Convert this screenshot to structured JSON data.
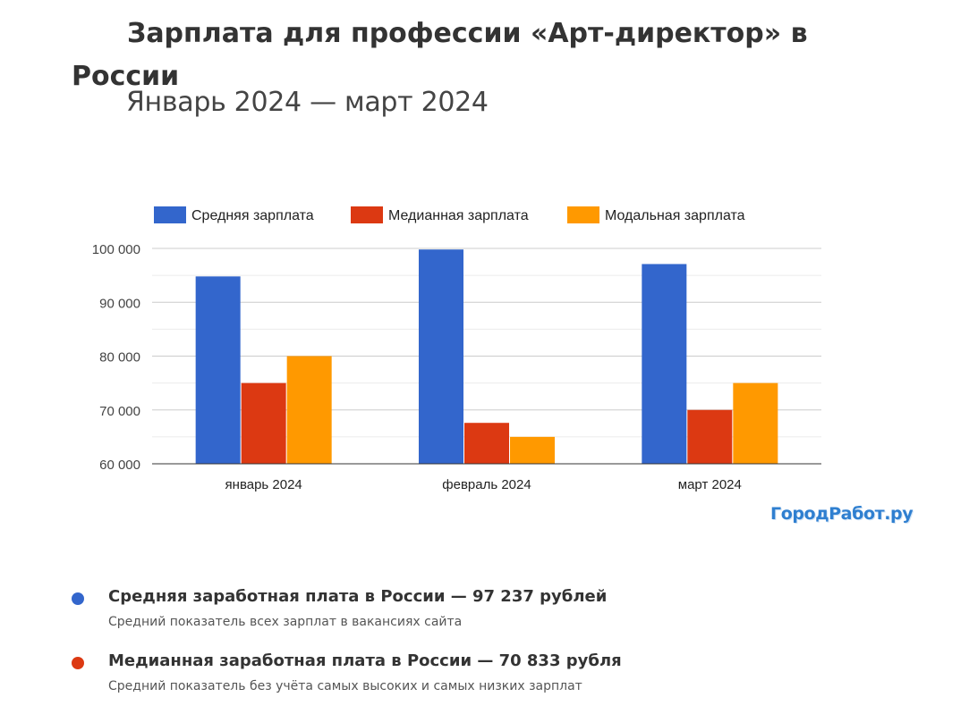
{
  "title": "Зарплата для профессии «Арт-директор» в России",
  "subtitle": "Январь 2024 — март 2024",
  "brand": "ГородРабот.ру",
  "chart_data": {
    "type": "bar",
    "categories": [
      "январь 2024",
      "февраль 2024",
      "март 2024"
    ],
    "series": [
      {
        "name": "Средняя зарплата",
        "color": "#3366cc",
        "values": [
          94800,
          99800,
          97100
        ]
      },
      {
        "name": "Медианная зарплата",
        "color": "#dc3912",
        "values": [
          75000,
          67600,
          70000
        ]
      },
      {
        "name": "Модальная зарплата",
        "color": "#ff9900",
        "values": [
          80000,
          65000,
          75000
        ]
      }
    ],
    "ylim": [
      60000,
      100000
    ],
    "yticks": [
      60000,
      70000,
      80000,
      90000,
      100000
    ],
    "ytick_labels": [
      "60 000",
      "70 000",
      "80 000",
      "90 000",
      "100 000"
    ],
    "grid": true,
    "legend": "top"
  },
  "info": [
    {
      "color": "#3366cc",
      "head": "Средняя заработная плата в России — 97 237 рублей",
      "desc": "Средний показатель всех зарплат в вакансиях сайта"
    },
    {
      "color": "#dc3912",
      "head": "Медианная заработная плата в России — 70 833 рубля",
      "desc": "Средний показатель без учёта самых высоких и самых низких зарплат"
    }
  ]
}
